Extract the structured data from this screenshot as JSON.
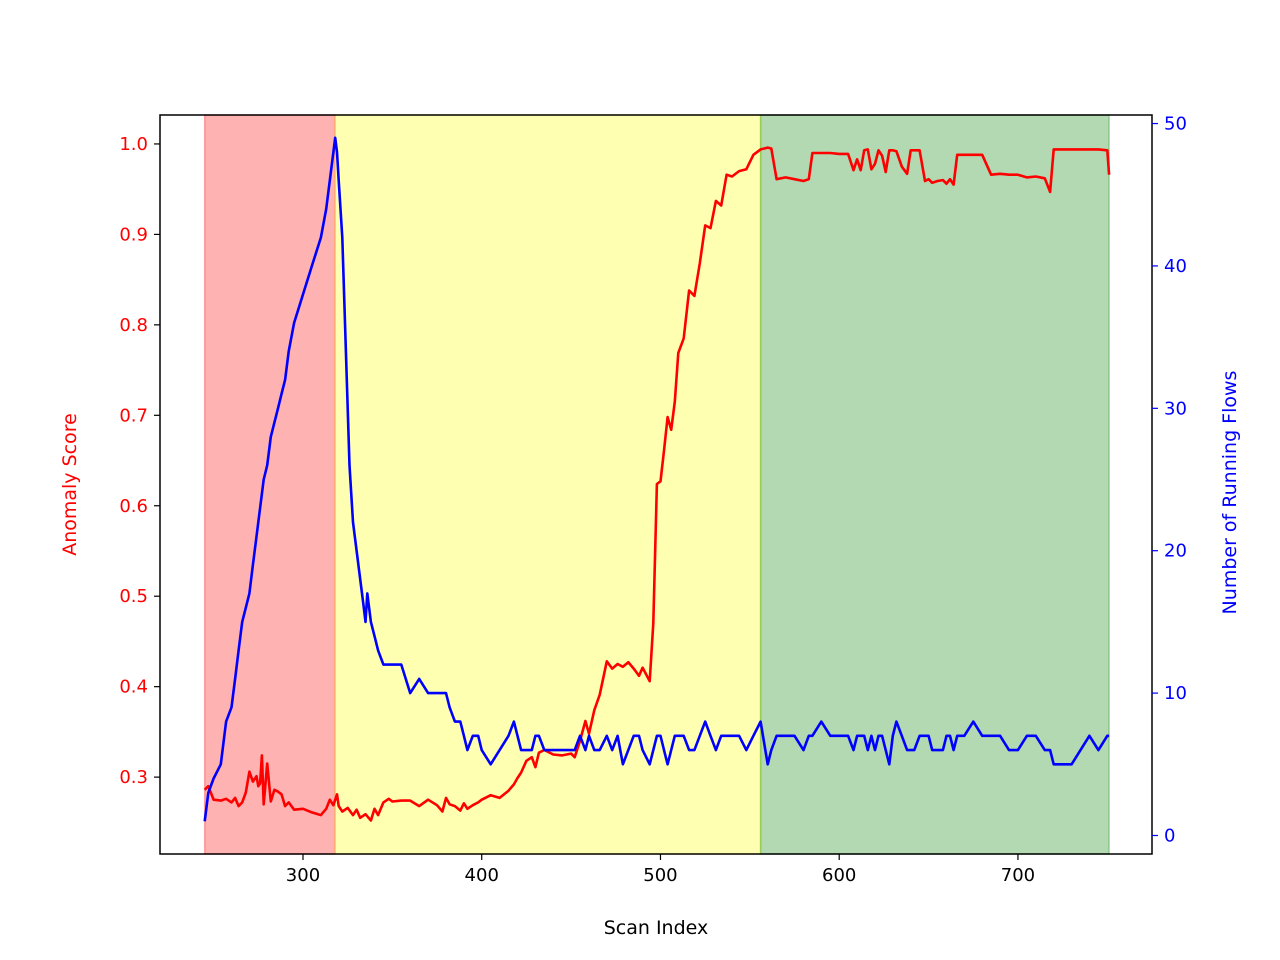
{
  "chart_data": {
    "type": "line",
    "title": "",
    "xlabel": "Scan Index",
    "ylabel_left": "Anomaly Score",
    "ylabel_right": "Number of Running Flows",
    "xlim": [
      220,
      775
    ],
    "ylim_left": [
      0.215,
      1.032
    ],
    "ylim_right": [
      -1.3,
      50.6
    ],
    "x_ticks": [
      300,
      400,
      500,
      600,
      700
    ],
    "y_ticks_left": [
      0.3,
      0.4,
      0.5,
      0.6,
      0.7,
      0.8,
      0.9,
      1.0
    ],
    "y_ticks_right": [
      0,
      10,
      20,
      30,
      40,
      50
    ],
    "grid": false,
    "legend": "none",
    "colors": {
      "left_axis": "#ff0000",
      "right_axis": "#0000ff"
    },
    "regions": [
      {
        "x_start": 245,
        "x_end": 318,
        "color": "#ff0000",
        "opacity": 0.3
      },
      {
        "x_start": 318,
        "x_end": 556,
        "color": "#ffff00",
        "opacity": 0.3
      },
      {
        "x_start": 556,
        "x_end": 751,
        "color": "#008000",
        "opacity": 0.3
      }
    ],
    "series": [
      {
        "axis": "left",
        "color": "#ff0000",
        "x": [
          245,
          247,
          250,
          254,
          257,
          260,
          262,
          264,
          266,
          268,
          270,
          272,
          274,
          275,
          276,
          277,
          278,
          280,
          282,
          284,
          286,
          288,
          290,
          292,
          295,
          300,
          305,
          310,
          313,
          315,
          317,
          319,
          320,
          322,
          325,
          328,
          330,
          332,
          335,
          338,
          340,
          342,
          345,
          348,
          350,
          355,
          360,
          365,
          370,
          375,
          378,
          380,
          382,
          385,
          388,
          390,
          392,
          395,
          398,
          400,
          405,
          410,
          415,
          418,
          420,
          422,
          425,
          428,
          430,
          432,
          435,
          440,
          445,
          450,
          452,
          455,
          458,
          460,
          463,
          466,
          470,
          473,
          476,
          479,
          482,
          485,
          488,
          490,
          494,
          496,
          498,
          500,
          502,
          504,
          506,
          508,
          510,
          513,
          516,
          519,
          522,
          525,
          528,
          531,
          534,
          537,
          540,
          544,
          548,
          552,
          556,
          560,
          562,
          565,
          570,
          575,
          580,
          583,
          585,
          590,
          595,
          600,
          605,
          608,
          610,
          612,
          614,
          616,
          618,
          620,
          622,
          624,
          626,
          628,
          630,
          632,
          635,
          638,
          640,
          642,
          645,
          648,
          650,
          652,
          655,
          658,
          660,
          662,
          664,
          666,
          670,
          675,
          680,
          685,
          690,
          695,
          700,
          705,
          710,
          715,
          718,
          720,
          725,
          730,
          735,
          740,
          745,
          750,
          751
        ],
        "y": [
          0.286,
          0.29,
          0.275,
          0.274,
          0.276,
          0.272,
          0.277,
          0.268,
          0.272,
          0.283,
          0.306,
          0.295,
          0.301,
          0.29,
          0.293,
          0.324,
          0.27,
          0.315,
          0.273,
          0.286,
          0.284,
          0.281,
          0.268,
          0.272,
          0.264,
          0.265,
          0.261,
          0.258,
          0.265,
          0.275,
          0.269,
          0.281,
          0.268,
          0.262,
          0.266,
          0.258,
          0.264,
          0.255,
          0.259,
          0.252,
          0.265,
          0.258,
          0.272,
          0.276,
          0.273,
          0.274,
          0.274,
          0.268,
          0.275,
          0.269,
          0.262,
          0.277,
          0.27,
          0.268,
          0.263,
          0.271,
          0.265,
          0.269,
          0.272,
          0.275,
          0.28,
          0.277,
          0.285,
          0.292,
          0.299,
          0.305,
          0.318,
          0.322,
          0.311,
          0.327,
          0.33,
          0.325,
          0.324,
          0.326,
          0.322,
          0.34,
          0.362,
          0.348,
          0.374,
          0.391,
          0.428,
          0.42,
          0.425,
          0.422,
          0.427,
          0.42,
          0.412,
          0.421,
          0.406,
          0.47,
          0.624,
          0.627,
          0.661,
          0.698,
          0.684,
          0.715,
          0.769,
          0.785,
          0.838,
          0.832,
          0.868,
          0.91,
          0.907,
          0.937,
          0.932,
          0.966,
          0.964,
          0.97,
          0.972,
          0.988,
          0.994,
          0.996,
          0.995,
          0.961,
          0.963,
          0.961,
          0.959,
          0.961,
          0.99,
          0.99,
          0.99,
          0.989,
          0.989,
          0.971,
          0.983,
          0.971,
          0.993,
          0.994,
          0.972,
          0.978,
          0.993,
          0.987,
          0.969,
          0.993,
          0.993,
          0.992,
          0.975,
          0.967,
          0.993,
          0.993,
          0.993,
          0.959,
          0.961,
          0.957,
          0.959,
          0.96,
          0.956,
          0.961,
          0.955,
          0.988,
          0.988,
          0.988,
          0.988,
          0.966,
          0.967,
          0.966,
          0.966,
          0.963,
          0.964,
          0.962,
          0.947,
          0.994,
          0.994,
          0.994,
          0.994,
          0.994,
          0.994,
          0.993,
          0.966
        ]
      },
      {
        "axis": "right",
        "color": "#0000ff",
        "x": [
          245,
          247,
          250,
          254,
          257,
          260,
          262,
          264,
          266,
          268,
          270,
          272,
          274,
          275,
          276,
          277,
          278,
          280,
          282,
          284,
          286,
          288,
          290,
          292,
          295,
          300,
          305,
          310,
          313,
          315,
          317,
          318,
          319,
          320,
          322,
          323,
          324,
          325,
          326,
          328,
          330,
          331,
          332,
          333,
          334,
          335,
          336,
          337,
          338,
          340,
          342,
          345,
          348,
          350,
          355,
          360,
          365,
          370,
          375,
          378,
          380,
          382,
          385,
          388,
          390,
          392,
          395,
          398,
          400,
          405,
          410,
          415,
          418,
          420,
          422,
          425,
          428,
          430,
          432,
          435,
          440,
          445,
          450,
          452,
          455,
          458,
          460,
          463,
          466,
          470,
          473,
          476,
          479,
          482,
          485,
          488,
          490,
          494,
          496,
          498,
          500,
          502,
          504,
          506,
          508,
          510,
          513,
          516,
          519,
          522,
          525,
          528,
          531,
          534,
          537,
          540,
          544,
          548,
          552,
          556,
          560,
          562,
          565,
          570,
          575,
          580,
          583,
          585,
          590,
          595,
          600,
          605,
          608,
          610,
          612,
          614,
          616,
          618,
          620,
          622,
          624,
          626,
          628,
          630,
          632,
          635,
          638,
          640,
          642,
          645,
          648,
          650,
          652,
          655,
          658,
          660,
          662,
          664,
          666,
          670,
          675,
          680,
          685,
          690,
          695,
          700,
          705,
          710,
          715,
          718,
          720,
          725,
          730,
          735,
          740,
          745,
          750,
          751
        ],
        "y": [
          1,
          3,
          4,
          5,
          8,
          9,
          11,
          13,
          15,
          16,
          17,
          19,
          21,
          22,
          23,
          24,
          25,
          26,
          28,
          29,
          30,
          31,
          32,
          34,
          36,
          38,
          40,
          42,
          44,
          46,
          48,
          49,
          48,
          46,
          42,
          38,
          34,
          30,
          26,
          22,
          20,
          19,
          18,
          17,
          16,
          15,
          17,
          16,
          15,
          14,
          13,
          12,
          12,
          12,
          12,
          10,
          11,
          10,
          10,
          10,
          10,
          9,
          8,
          8,
          7,
          6,
          7,
          7,
          6,
          5,
          6,
          7,
          8,
          7,
          6,
          6,
          6,
          7,
          7,
          6,
          6,
          6,
          6,
          6,
          7,
          6,
          7,
          6,
          6,
          7,
          6,
          7,
          5,
          6,
          7,
          7,
          6,
          5,
          6,
          7,
          7,
          6,
          5,
          6,
          7,
          7,
          7,
          6,
          6,
          7,
          8,
          7,
          6,
          7,
          7,
          7,
          7,
          6,
          7,
          8,
          5,
          6,
          7,
          7,
          7,
          6,
          7,
          7,
          8,
          7,
          7,
          7,
          6,
          7,
          7,
          7,
          6,
          7,
          6,
          7,
          7,
          6,
          5,
          7,
          8,
          7,
          6,
          6,
          6,
          7,
          7,
          7,
          6,
          6,
          6,
          7,
          7,
          6,
          7,
          7,
          8,
          7,
          7,
          7,
          6,
          6,
          7,
          7,
          6,
          6,
          5,
          5,
          5,
          6,
          7,
          6,
          7,
          7
        ]
      }
    ]
  }
}
